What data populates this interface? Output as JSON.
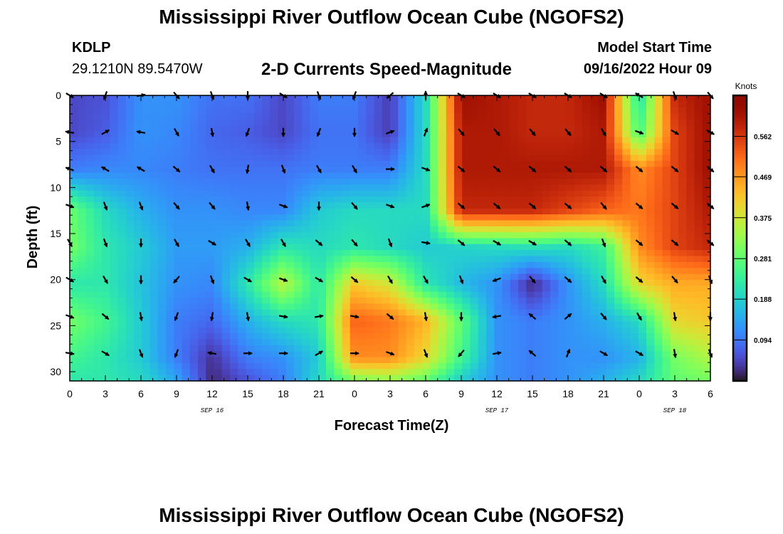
{
  "page": {
    "title": "Mississippi River Outflow Ocean Cube (NGOFS2)",
    "title_repeat": "Mississippi River Outflow Ocean Cube (NGOFS2)",
    "station": "KDLP",
    "coords": "29.1210N  89.5470W",
    "subtitle": "2-D Currents Speed-Magnitude",
    "model_start_label": "Model Start Time",
    "model_start_value": "09/16/2022 Hour 09"
  },
  "chart_data": {
    "type": "heatmap",
    "title": "2-D Currents Speed-Magnitude",
    "xlabel": "Forecast Time(Z)",
    "ylabel": "Depth (ft)",
    "x_tick_labels": [
      "0",
      "3",
      "6",
      "9",
      "12",
      "15",
      "18",
      "21",
      "0",
      "3",
      "6",
      "9",
      "12",
      "15",
      "18",
      "21",
      "0",
      "3",
      "6"
    ],
    "x_range_hours": [
      0,
      54
    ],
    "y_ticks": [
      0,
      5,
      10,
      15,
      20,
      25,
      30
    ],
    "y_range_ft": [
      0,
      31
    ],
    "y_inverted": true,
    "day_labels": [
      {
        "text": "SEP 16",
        "hour": 12
      },
      {
        "text": "SEP 17",
        "hour": 36
      },
      {
        "text": "SEP 18",
        "hour": 51
      }
    ],
    "colorbar": {
      "unit": "Knots",
      "ticks": [
        "0.094",
        "0.188",
        "0.281",
        "0.375",
        "0.469",
        "0.562"
      ],
      "tick_values": [
        0.094,
        0.188,
        0.281,
        0.375,
        0.469,
        0.562
      ],
      "range": [
        0.0,
        0.656
      ],
      "colormap": "turbo"
    },
    "grid_hours": [
      0,
      3,
      6,
      9,
      12,
      15,
      18,
      21,
      24,
      27,
      30,
      33,
      36,
      39,
      42,
      45,
      48,
      51,
      54
    ],
    "grid_depths_ft": [
      0,
      4,
      8,
      12.5,
      16.5,
      20.5,
      24.5,
      28.5,
      31
    ],
    "speed_knots": [
      [
        0.05,
        0.06,
        0.12,
        0.12,
        0.09,
        0.09,
        0.05,
        0.1,
        0.1,
        0.04,
        0.2,
        0.62,
        0.6,
        0.58,
        0.58,
        0.62,
        0.2,
        0.58,
        0.62
      ],
      [
        0.05,
        0.07,
        0.12,
        0.11,
        0.08,
        0.07,
        0.05,
        0.09,
        0.09,
        0.04,
        0.2,
        0.6,
        0.6,
        0.58,
        0.58,
        0.6,
        0.25,
        0.55,
        0.62
      ],
      [
        0.1,
        0.11,
        0.11,
        0.1,
        0.09,
        0.09,
        0.09,
        0.1,
        0.1,
        0.1,
        0.2,
        0.6,
        0.6,
        0.6,
        0.6,
        0.6,
        0.48,
        0.55,
        0.62
      ],
      [
        0.29,
        0.2,
        0.15,
        0.12,
        0.12,
        0.11,
        0.11,
        0.18,
        0.2,
        0.2,
        0.2,
        0.58,
        0.58,
        0.58,
        0.55,
        0.52,
        0.5,
        0.55,
        0.6
      ],
      [
        0.3,
        0.22,
        0.18,
        0.13,
        0.13,
        0.15,
        0.22,
        0.2,
        0.22,
        0.2,
        0.18,
        0.19,
        0.2,
        0.21,
        0.2,
        0.24,
        0.48,
        0.55,
        0.58
      ],
      [
        0.22,
        0.22,
        0.17,
        0.12,
        0.11,
        0.22,
        0.36,
        0.22,
        0.42,
        0.38,
        0.22,
        0.16,
        0.12,
        0.02,
        0.12,
        0.2,
        0.4,
        0.45,
        0.45
      ],
      [
        0.3,
        0.25,
        0.18,
        0.1,
        0.08,
        0.15,
        0.2,
        0.22,
        0.52,
        0.5,
        0.44,
        0.28,
        0.12,
        0.1,
        0.12,
        0.15,
        0.2,
        0.4,
        0.42
      ],
      [
        0.25,
        0.22,
        0.18,
        0.1,
        0.03,
        0.1,
        0.12,
        0.18,
        0.48,
        0.48,
        0.4,
        0.25,
        0.12,
        0.1,
        0.12,
        0.12,
        0.15,
        0.3,
        0.35
      ],
      [
        0.22,
        0.22,
        0.2,
        0.14,
        0.02,
        0.06,
        0.1,
        0.2,
        0.3,
        0.32,
        0.28,
        0.18,
        0.12,
        0.1,
        0.12,
        0.15,
        0.2,
        0.28,
        0.3
      ]
    ],
    "direction_deg": [
      [
        120,
        200,
        80,
        140,
        160,
        180,
        120,
        160,
        200,
        230,
        0,
        120,
        120,
        120,
        120,
        120,
        300,
        160,
        140
      ],
      [
        280,
        60,
        280,
        150,
        170,
        200,
        180,
        200,
        180,
        70,
        20,
        140,
        140,
        140,
        140,
        150,
        110,
        120,
        120
      ],
      [
        290,
        300,
        300,
        130,
        150,
        190,
        160,
        150,
        150,
        90,
        110,
        130,
        130,
        130,
        130,
        130,
        130,
        130,
        130
      ],
      [
        110,
        160,
        160,
        140,
        140,
        170,
        110,
        180,
        140,
        110,
        70,
        130,
        130,
        130,
        130,
        140,
        130,
        130,
        130
      ],
      [
        150,
        160,
        180,
        150,
        120,
        150,
        150,
        130,
        140,
        160,
        100,
        130,
        120,
        120,
        130,
        160,
        130,
        130,
        130
      ],
      [
        120,
        150,
        180,
        220,
        160,
        120,
        110,
        120,
        130,
        150,
        150,
        160,
        250,
        140,
        130,
        150,
        130,
        140,
        160
      ],
      [
        110,
        130,
        170,
        200,
        190,
        170,
        100,
        80,
        100,
        130,
        170,
        180,
        260,
        310,
        50,
        140,
        150,
        170,
        180
      ],
      [
        100,
        120,
        160,
        200,
        280,
        90,
        90,
        60,
        90,
        110,
        160,
        220,
        80,
        310,
        20,
        120,
        120,
        170,
        160
      ]
    ],
    "arrow_depths_ft": [
      0,
      4,
      8,
      12,
      16,
      20,
      24,
      28
    ],
    "arrow_hours": [
      0,
      3,
      6,
      9,
      12,
      15,
      18,
      21,
      24,
      27,
      30,
      33,
      36,
      39,
      42,
      45,
      48,
      51,
      54
    ]
  }
}
